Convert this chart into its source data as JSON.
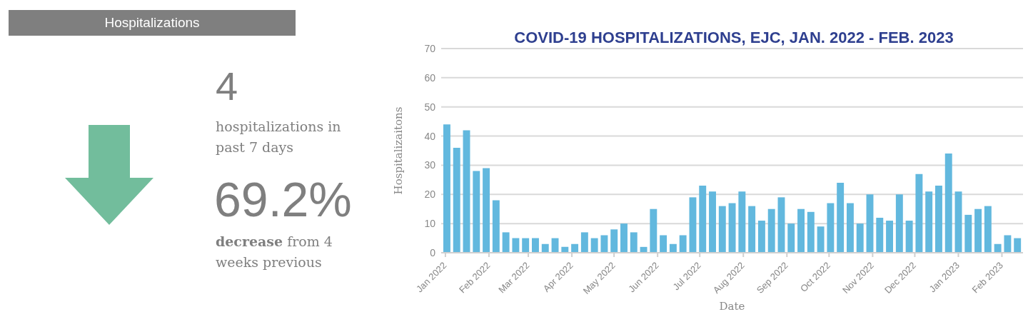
{
  "chart_data": [
    {
      "type": "other",
      "title": "Hospitalizations",
      "annotations": [
        "4",
        "hospitalizations in past 7 days",
        "69.2%",
        "decrease",
        "from 4 weeks previous"
      ]
    },
    {
      "type": "bar",
      "title": "COVID-19 HOSPITALIZATIONS, EJC, JAN. 2022 - FEB. 2023",
      "xlabel": "Date",
      "ylabel": "Hospitalizaitons",
      "x": [
        "2022-01-02",
        "2022-01-09",
        "2022-01-16",
        "2022-01-23",
        "2022-01-30",
        "2022-02-06",
        "2022-02-13",
        "2022-02-20",
        "2022-02-27",
        "2022-03-06",
        "2022-03-13",
        "2022-03-20",
        "2022-03-27",
        "2022-04-03",
        "2022-04-10",
        "2022-04-17",
        "2022-04-24",
        "2022-05-01",
        "2022-05-08",
        "2022-05-15",
        "2022-05-22",
        "2022-05-29",
        "2022-06-05",
        "2022-06-12",
        "2022-06-19",
        "2022-06-26",
        "2022-07-03",
        "2022-07-10",
        "2022-07-17",
        "2022-07-24",
        "2022-07-31",
        "2022-08-07",
        "2022-08-14",
        "2022-08-21",
        "2022-08-28",
        "2022-09-04",
        "2022-09-11",
        "2022-09-18",
        "2022-09-25",
        "2022-10-02",
        "2022-10-09",
        "2022-10-16",
        "2022-10-23",
        "2022-10-30",
        "2022-11-06",
        "2022-11-13",
        "2022-11-20",
        "2022-11-27",
        "2022-12-04",
        "2022-12-11",
        "2022-12-18",
        "2022-12-25",
        "2023-01-01",
        "2023-01-08",
        "2023-01-15",
        "2023-01-22",
        "2023-01-29",
        "2023-02-05",
        "2023-02-12"
      ],
      "values": [
        44,
        36,
        42,
        28,
        29,
        18,
        7,
        5,
        5,
        5,
        3,
        5,
        2,
        3,
        7,
        5,
        6,
        8,
        10,
        7,
        2,
        15,
        6,
        3,
        6,
        19,
        23,
        21,
        16,
        17,
        21,
        16,
        11,
        15,
        19,
        10,
        15,
        14,
        9,
        17,
        24,
        17,
        10,
        20,
        12,
        11,
        20,
        11,
        27,
        21,
        23,
        34,
        21,
        13,
        15,
        16,
        3,
        6,
        5
      ],
      "color": "#62b8de",
      "xlim": [
        "2021-12-29",
        "2023-02-16"
      ],
      "xticks": [
        {
          "value": "2022-01-01",
          "label": "Jan 2022"
        },
        {
          "value": "2022-02-01",
          "label": "Feb 2022"
        },
        {
          "value": "2022-03-01",
          "label": "Mar 2022"
        },
        {
          "value": "2022-04-01",
          "label": "Apr 2022"
        },
        {
          "value": "2022-05-01",
          "label": "May 2022"
        },
        {
          "value": "2022-06-01",
          "label": "Jun 2022"
        },
        {
          "value": "2022-07-01",
          "label": "Jul 2022"
        },
        {
          "value": "2022-08-01",
          "label": "Aug 2022"
        },
        {
          "value": "2022-09-01",
          "label": "Sep 2022"
        },
        {
          "value": "2022-10-01",
          "label": "Oct 2022"
        },
        {
          "value": "2022-11-01",
          "label": "Nov 2022"
        },
        {
          "value": "2022-12-01",
          "label": "Dec 2022"
        },
        {
          "value": "2023-01-01",
          "label": "Jan 2023"
        },
        {
          "value": "2023-02-01",
          "label": "Feb 2023"
        }
      ],
      "ylim": [
        0,
        70
      ],
      "yticks": [
        0,
        10,
        20,
        30,
        40,
        50,
        60,
        70
      ],
      "grid": "y"
    }
  ]
}
